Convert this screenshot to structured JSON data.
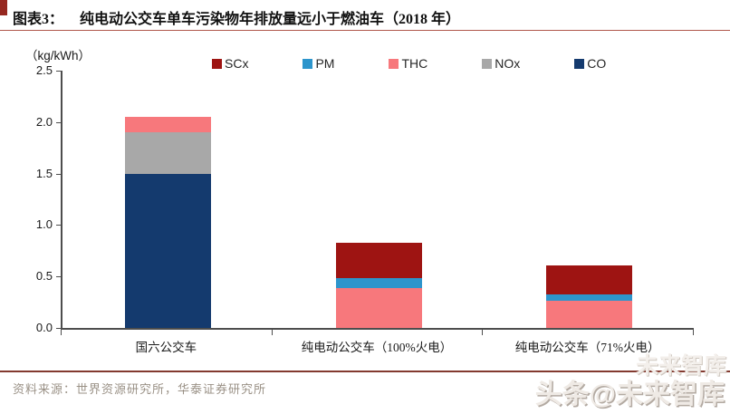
{
  "figure": {
    "label": "图表3：",
    "title": "纯电动公交车单车污染物年排放量远小于燃油车（2018 年）",
    "unit_label": "（kg/kWh）",
    "source": "资料来源：世界资源研究所，华泰证券研究所"
  },
  "watermark": {
    "main": "头条@未来智库",
    "ghost": "未来智库"
  },
  "colors": {
    "title_square": "#962820",
    "title_underline": "#b0574c",
    "footer_line": "#833a2f",
    "axis": "#4d4d4d"
  },
  "chart_data": {
    "type": "bar",
    "stacked": true,
    "title": "纯电动公交车单车污染物年排放量远小于燃油车（2018 年）",
    "ylabel": "（kg/kWh）",
    "ylim": [
      0,
      2.5
    ],
    "ytick_step": 0.5,
    "grid": false,
    "legend_position": "top",
    "categories": [
      "国六公交车",
      "纯电动公交车（100%火电）",
      "纯电动公交车（71%火电）"
    ],
    "series": [
      {
        "name": "SCx",
        "color": "#9e1412",
        "values": [
          0,
          0.35,
          0.28
        ]
      },
      {
        "name": "PM",
        "color": "#2d95cc",
        "values": [
          0,
          0.09,
          0.07
        ]
      },
      {
        "name": "THC",
        "color": "#f7787c",
        "values": [
          0.15,
          0.39,
          0.26
        ]
      },
      {
        "name": "NOx",
        "color": "#a8a8a8",
        "values": [
          0.4,
          0,
          0
        ]
      },
      {
        "name": "CO",
        "color": "#143a6e",
        "values": [
          1.5,
          0,
          0
        ]
      }
    ],
    "stack_order_bottom_to_top": [
      "CO",
      "NOx",
      "THC",
      "PM",
      "SCx"
    ],
    "totals": [
      2.05,
      0.83,
      0.61
    ]
  }
}
